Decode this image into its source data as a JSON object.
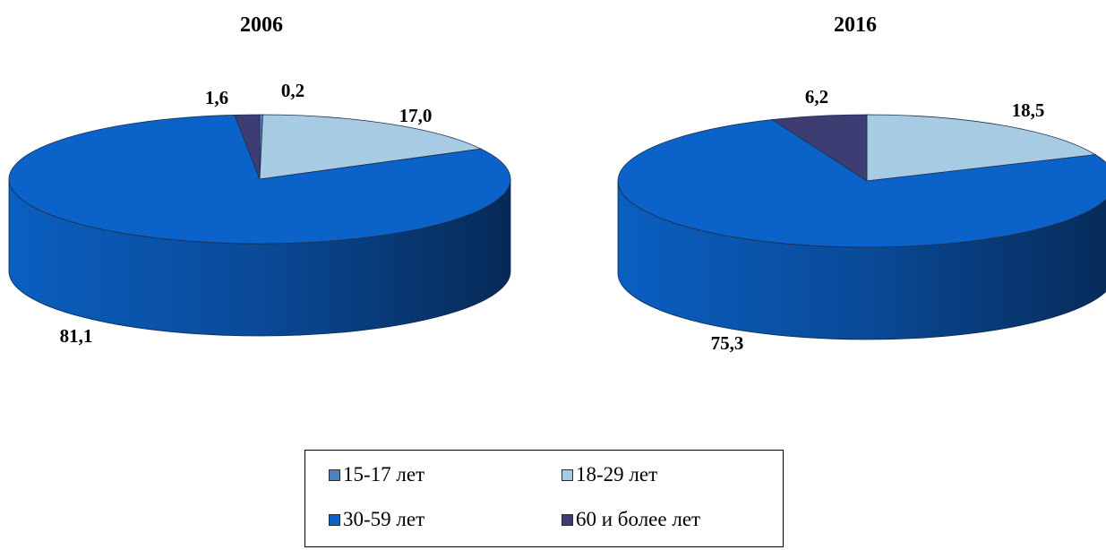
{
  "chart_data": [
    {
      "type": "pie",
      "title": "2006",
      "categories": [
        "15-17 лет",
        "18-29 лет",
        "30-59 лет",
        "60 и более лет"
      ],
      "values": [
        0.2,
        17.0,
        81.1,
        1.6
      ],
      "value_labels": [
        "0,2",
        "17,0",
        "81,1",
        "1,6"
      ],
      "style": "3d"
    },
    {
      "type": "pie",
      "title": "2016",
      "categories": [
        "15-17 лет",
        "18-29 лет",
        "30-59 лет",
        "60 и более лет"
      ],
      "values": [
        0,
        18.5,
        75.3,
        6.2
      ],
      "value_labels": [
        "",
        "18,5",
        "75,3",
        "6,2"
      ],
      "style": "3d"
    }
  ],
  "legend": {
    "placement": "bottom",
    "items": [
      {
        "label": "15-17 лет",
        "color": "#4f81bd"
      },
      {
        "label": "18-29 лет",
        "color": "#a6cbe3"
      },
      {
        "label": "30-59 лет",
        "color": "#0b63c9"
      },
      {
        "label": "60 и более лет",
        "color": "#3e3d73"
      }
    ]
  },
  "colors": {
    "slice_15_17": "#4f81bd",
    "slice_18_29": "#a6cbe3",
    "slice_30_59": "#0b63c9",
    "slice_60_plus": "#3e3d73",
    "side_dark": "#062a57"
  }
}
